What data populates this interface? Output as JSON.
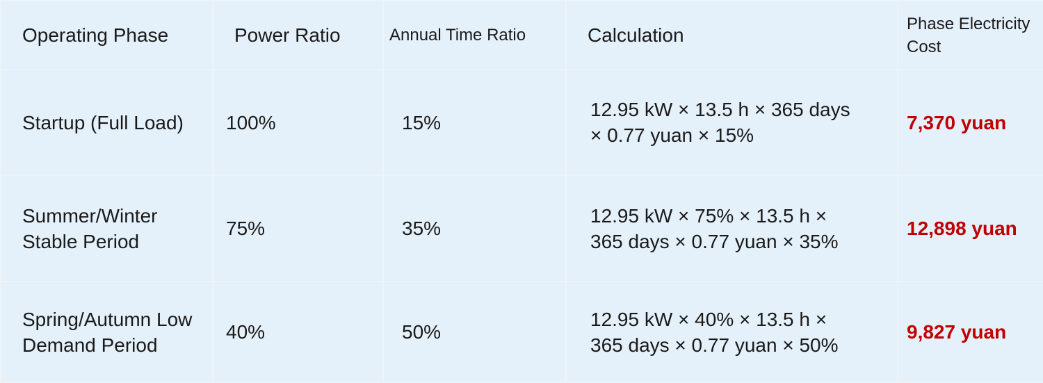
{
  "table": {
    "headers": [
      "Operating Phase",
      "Power Ratio",
      "Annual Time Ratio",
      "Calculation",
      "Phase Electricity Cost"
    ],
    "rows": [
      [
        "Startup (Full Load)",
        "100%",
        "15%",
        "12.95 kW × 13.5 h × 365 days × 0.77 yuan × 15%",
        "7,370 yuan"
      ],
      [
        "Summer/Winter Stable Period",
        "75%",
        "35%",
        "12.95 kW × 75% × 13.5 h × 365 days × 0.77 yuan × 35%",
        "12,898 yuan"
      ],
      [
        "Spring/Autumn Low Demand Period",
        "40%",
        "50%",
        "12.95 kW × 40% × 13.5 h × 365 days × 0.77 yuan × 50%",
        "9,827 yuan"
      ]
    ]
  }
}
